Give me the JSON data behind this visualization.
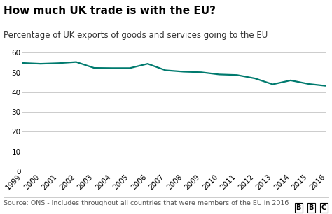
{
  "title": "How much UK trade is with the EU?",
  "subtitle": "Percentage of UK exports of goods and services going to the EU",
  "source": "Source: ONS - Includes throughout all countries that were members of the EU in 2016",
  "years": [
    1999,
    2000,
    2001,
    2002,
    2003,
    2004,
    2005,
    2006,
    2007,
    2008,
    2009,
    2010,
    2011,
    2012,
    2013,
    2014,
    2015,
    2016
  ],
  "values": [
    54.8,
    54.4,
    54.7,
    55.3,
    52.3,
    52.2,
    52.2,
    54.4,
    51.1,
    50.4,
    50.1,
    49.0,
    48.7,
    47.0,
    44.0,
    46.0,
    44.2,
    43.2
  ],
  "line_color": "#007a6e",
  "background_color": "#ffffff",
  "plot_bg_color": "#ffffff",
  "grid_color": "#cccccc",
  "ylim": [
    0,
    65
  ],
  "yticks": [
    0,
    10,
    20,
    30,
    40,
    50,
    60
  ],
  "title_fontsize": 11,
  "subtitle_fontsize": 8.5,
  "source_fontsize": 6.8,
  "tick_fontsize": 7.5,
  "title_color": "#000000",
  "subtitle_color": "#333333",
  "source_color": "#555555",
  "line_width": 1.6
}
